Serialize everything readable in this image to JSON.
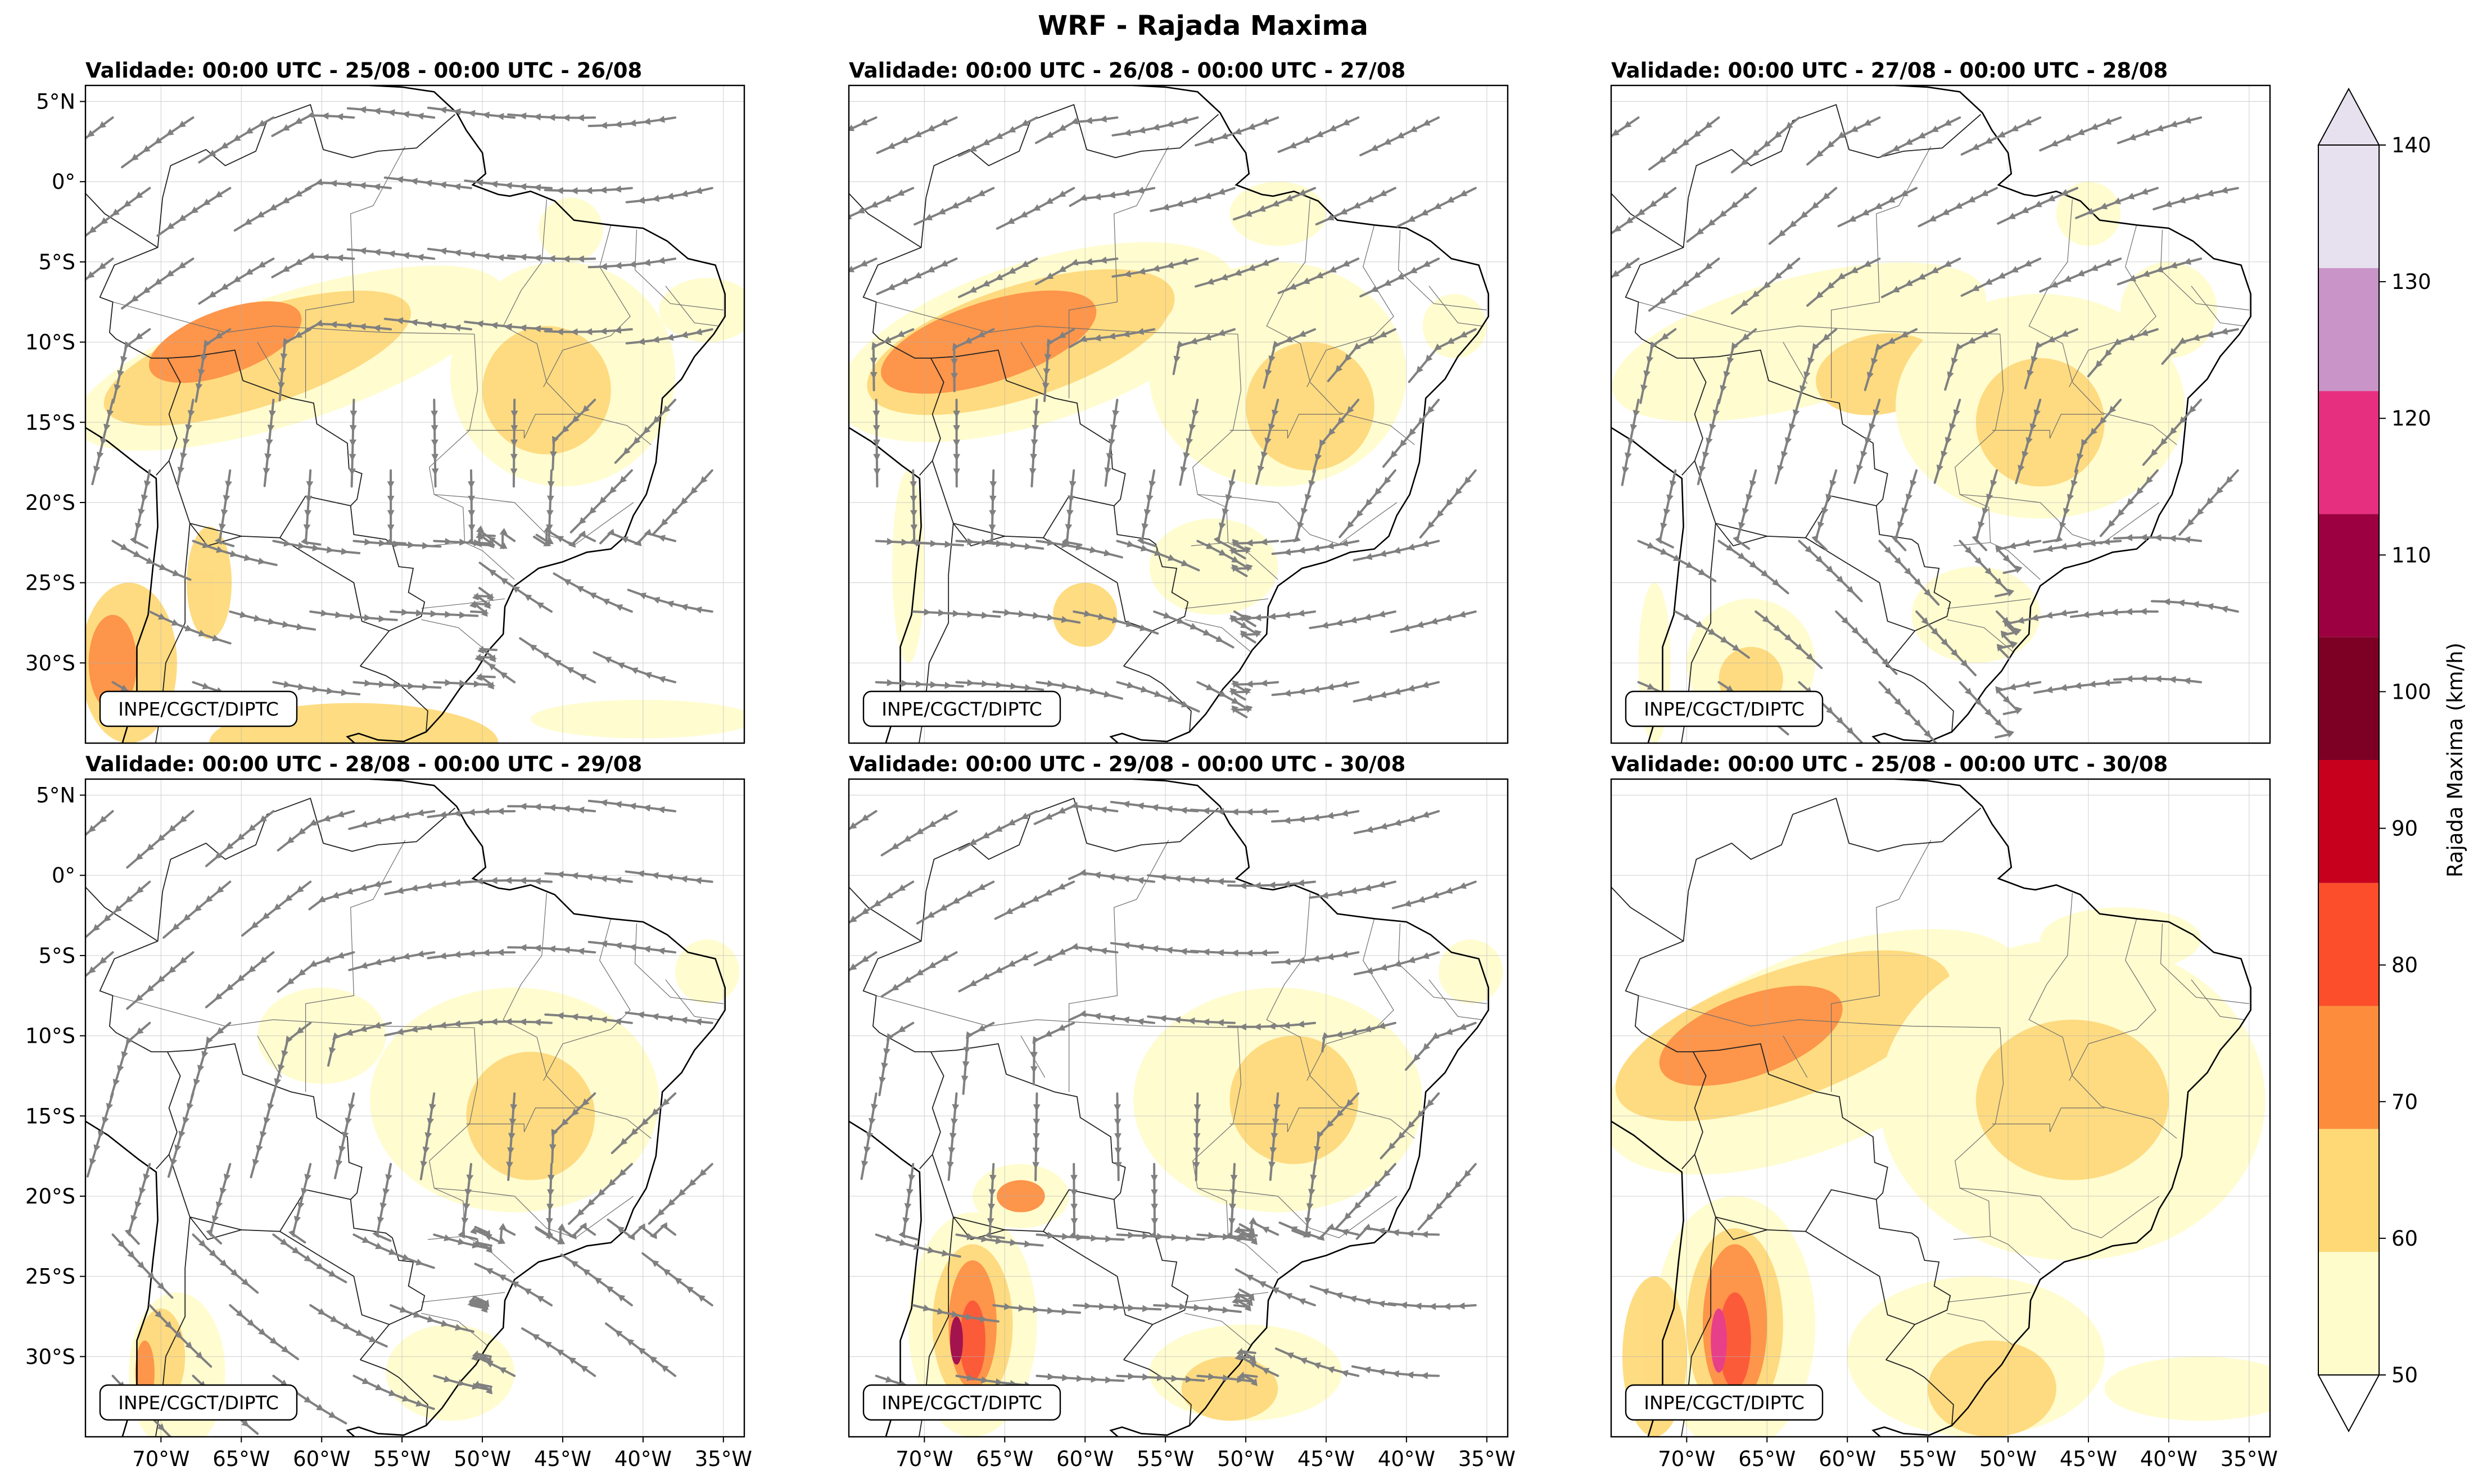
{
  "title": "WRF - Rajada Maxima",
  "credit": "INPE/CGCT/DIPTC",
  "panels": [
    {
      "label": "Validade: 00:00 UTC - 25/08 - 00:00 UTC - 26/08",
      "has_streamlines": true
    },
    {
      "label": "Validade: 00:00 UTC - 26/08 - 00:00 UTC - 27/08",
      "has_streamlines": true
    },
    {
      "label": "Validade: 00:00 UTC - 27/08 - 00:00 UTC - 28/08",
      "has_streamlines": true
    },
    {
      "label": "Validade: 00:00 UTC - 28/08 - 00:00 UTC - 29/08",
      "has_streamlines": true
    },
    {
      "label": "Validade: 00:00 UTC - 29/08 - 00:00 UTC - 30/08",
      "has_streamlines": true
    },
    {
      "label": "Validade: 00:00 UTC - 25/08 - 00:00 UTC - 30/08",
      "has_streamlines": false
    }
  ],
  "lat_ticks": [
    "5°N",
    "0°",
    "5°S",
    "10°S",
    "15°S",
    "20°S",
    "25°S",
    "30°S"
  ],
  "lon_ticks": [
    "70°W",
    "65°W",
    "60°W",
    "55°W",
    "50°W",
    "45°W",
    "40°W",
    "35°W"
  ],
  "colorbar": {
    "label": "Rajada Maxima (km/h)",
    "ticks": [
      "50",
      "60",
      "70",
      "80",
      "90",
      "100",
      "110",
      "120",
      "130",
      "140"
    ],
    "colors": [
      "#fffccc",
      "#fed976",
      "#fd8d3c",
      "#fc4e2a",
      "#c7001e",
      "#7d0024",
      "#9c0040",
      "#e72f80",
      "#c994c7",
      "#e7e1ef"
    ],
    "extend": "both"
  }
}
